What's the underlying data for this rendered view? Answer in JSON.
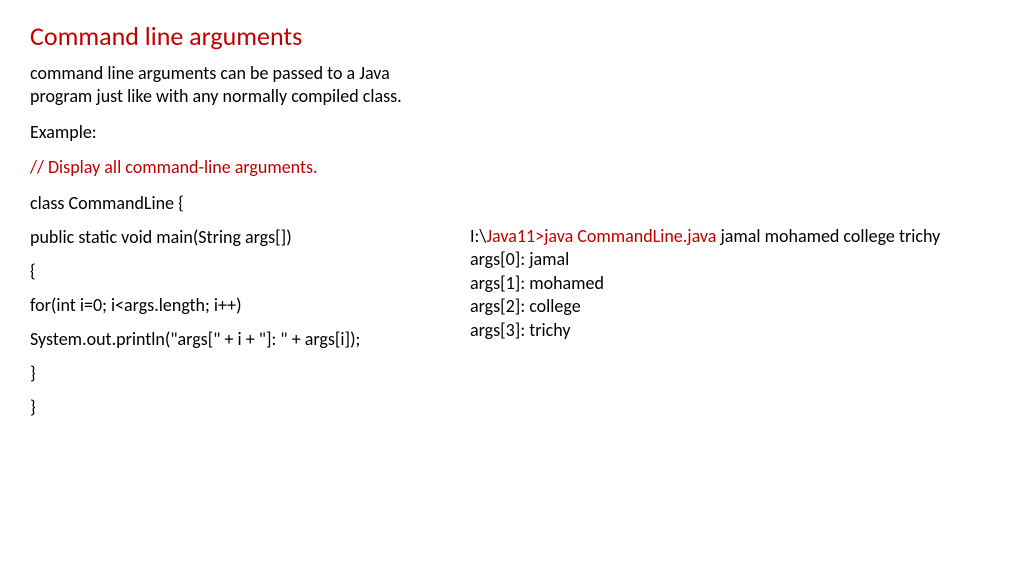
{
  "title": "Command line arguments",
  "description": "command line arguments can be passed to a Java program just like with any normally compiled class.",
  "exampleLabel": "Example:",
  "comment": "// Display all command-line arguments.",
  "code": {
    "line1": "class CommandLine {",
    "line2": "public static void main(String args[])",
    "line3": "{",
    "line4": "for(int i=0; i<args.length; i++)",
    "line5": "System.out.println(\"args[\" + i + \"]: \" + args[i]);",
    "line6": "}",
    "line7": "}"
  },
  "output": {
    "prompt_prefix": "I:\\",
    "prompt_command": "Java11>java CommandLine.java",
    "prompt_args": " jamal mohamed college trichy",
    "line1": "args[0]: jamal",
    "line2": "args[1]: mohamed",
    "line3": "args[2]: college",
    "line4": "args[3]: trichy"
  },
  "colors": {
    "heading": "#c00000",
    "body_text": "#000000",
    "highlight": "#c00000",
    "background": "#ffffff"
  },
  "typography": {
    "title_fontsize": 26,
    "body_fontsize": 18,
    "font_family": "Calibri"
  }
}
